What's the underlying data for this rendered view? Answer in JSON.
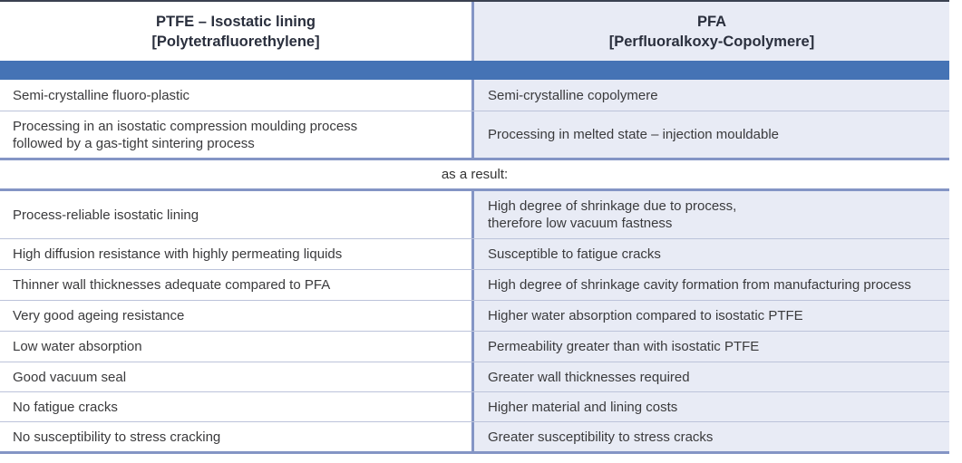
{
  "table": {
    "header": {
      "ptfe": {
        "title": "PTFE – Isostatic lining",
        "subtitle": "[Polytetrafluorethylene]"
      },
      "pfa": {
        "title": "PFA",
        "subtitle": "[Perfluoralkoxy-Copolymere]"
      }
    },
    "properties_rows": [
      {
        "ptfe": "Semi-crystalline fluoro-plastic",
        "pfa": "Semi-crystalline copolymere"
      },
      {
        "ptfe": "Processing in an isostatic compression moulding process\nfollowed by a gas-tight sintering process",
        "pfa": "Processing in melted state – injection mouldable"
      }
    ],
    "result_label": "as a result:",
    "result_rows": [
      {
        "ptfe": "Process-reliable isostatic lining",
        "pfa": "High degree of shrinkage due to process,\ntherefore low vacuum fastness"
      },
      {
        "ptfe": "High diffusion resistance with highly permeating liquids",
        "pfa": "Susceptible to fatigue cracks"
      },
      {
        "ptfe": "Thinner wall thicknesses adequate compared to PFA",
        "pfa": "High degree of shrinkage cavity formation from manufacturing process"
      },
      {
        "ptfe": "Very good ageing resistance",
        "pfa": "Higher water absorption compared to isostatic PTFE"
      },
      {
        "ptfe": "Low water absorption",
        "pfa": "Permeability greater than with isostatic PTFE"
      },
      {
        "ptfe": "Good vacuum seal",
        "pfa": "Greater wall thicknesses required"
      },
      {
        "ptfe": "No fatigue cracks",
        "pfa": "Higher material and lining costs"
      },
      {
        "ptfe": "No susceptibility to stress cracking",
        "pfa": "Greater susceptibility to stress cracks"
      }
    ],
    "colors": {
      "band_blue": "#4573b5",
      "pfa_column_bg": "#e8ebf5",
      "divider_blue": "#8495c5",
      "separator": "#bcc3da",
      "header_text": "#2a2f3d",
      "body_text": "#3a3a3c"
    }
  }
}
